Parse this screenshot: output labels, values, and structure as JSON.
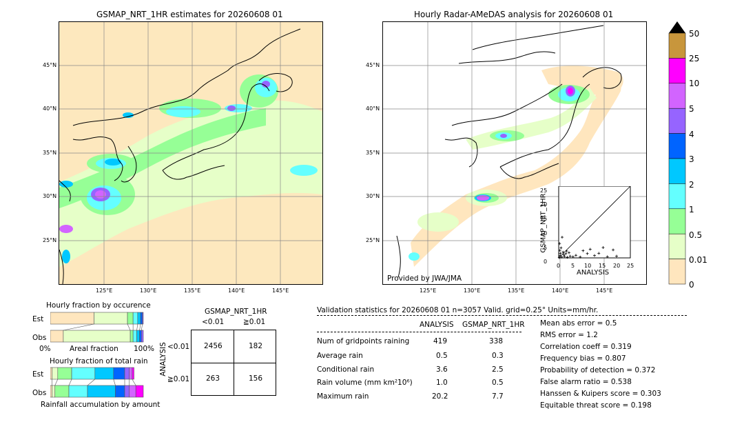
{
  "left_map": {
    "title": "GSMAP_NRT_1HR estimates for 20260608 01",
    "lat_labels": [
      "45°N",
      "40°N",
      "35°N",
      "30°N",
      "25°N"
    ],
    "lon_labels": [
      "125°E",
      "130°E",
      "135°E",
      "140°E",
      "145°E"
    ]
  },
  "right_map": {
    "title": "Hourly Radar-AMeDAS analysis for 20260608 01",
    "lat_labels": [
      "45°N",
      "40°N",
      "35°N",
      "30°N",
      "25°N"
    ],
    "lon_labels": [
      "125°E",
      "130°E",
      "135°E",
      "140°E",
      "145°E"
    ],
    "credit": "Provided by JWA/JMA"
  },
  "scatter_inset": {
    "xlabel": "ANALYSIS",
    "ylabel": "GSMAP_NRT_1HR",
    "ticks": [
      "0",
      "5",
      "10",
      "15",
      "20",
      "25"
    ]
  },
  "colorbar": {
    "labels": [
      "50",
      "25",
      "10",
      "5",
      "4",
      "3",
      "2",
      "1",
      "0.5",
      "0.01",
      "0"
    ],
    "colors": [
      "#c8963c",
      "#ff00ff",
      "#d264ff",
      "#9664ff",
      "#0064ff",
      "#00c8ff",
      "#64ffff",
      "#96ff96",
      "#e6ffc8",
      "#ffe6be"
    ]
  },
  "occurrence": {
    "title": "Hourly fraction by occurence",
    "row_est": "Est",
    "row_obs": "Obs",
    "axis_left": "0%",
    "axis_mid": "Areal fraction",
    "axis_right": "100%"
  },
  "total_rain": {
    "title": "Hourly fraction of total rain",
    "row_est": "Est",
    "row_obs": "Obs",
    "axis_label": "Rainfall accumulation by amount"
  },
  "contingency": {
    "title": "GSMAP_NRT_1HR",
    "col_lt": "<0.01",
    "col_ge": "≧0.01",
    "row_axis": "ANALYSIS",
    "row_lt": "<0.01",
    "row_ge": "≧0.01",
    "cells": [
      "2456",
      "182",
      "263",
      "156"
    ]
  },
  "validation": {
    "header": "Validation statistics for 20260608 01  n=3057 Valid. grid=0.25° Units=mm/hr.",
    "col_analysis": "ANALYSIS",
    "col_gsmap": "GSMAP_NRT_1HR",
    "rows": [
      {
        "label": "Num of gridpoints raining",
        "analysis": "419",
        "gsmap": "338"
      },
      {
        "label": "Average rain",
        "analysis": "0.5",
        "gsmap": "0.3"
      },
      {
        "label": "Conditional rain",
        "analysis": "3.6",
        "gsmap": "2.5"
      },
      {
        "label": "Rain volume (mm km²10⁶)",
        "analysis": "1.0",
        "gsmap": "0.5"
      },
      {
        "label": "Maximum rain",
        "analysis": "20.2",
        "gsmap": "7.7"
      }
    ],
    "scores": [
      "Mean abs error =    0.5",
      "RMS error =    1.2",
      "Correlation coeff =  0.319",
      "Frequency bias =  0.807",
      "Probability of detection =  0.372",
      "False alarm ratio =  0.538",
      "Hanssen & Kuipers score =  0.303",
      "Equitable threat score =  0.198"
    ]
  },
  "chart_data": [
    {
      "type": "scatter",
      "title": "",
      "xlabel": "ANALYSIS",
      "ylabel": "GSMAP_NRT_1HR",
      "xlim": [
        0,
        25
      ],
      "ylim": [
        0,
        25
      ],
      "points": [
        [
          0.2,
          0.1
        ],
        [
          0.5,
          0.8
        ],
        [
          1.0,
          0.3
        ],
        [
          1.5,
          2.0
        ],
        [
          2.0,
          0.5
        ],
        [
          0.8,
          3.5
        ],
        [
          0.3,
          5.0
        ],
        [
          1.2,
          7.2
        ],
        [
          2.5,
          1.5
        ],
        [
          3.0,
          0.2
        ],
        [
          4.0,
          0.6
        ],
        [
          5.0,
          0.4
        ],
        [
          6.0,
          0.9
        ],
        [
          7.5,
          0.3
        ],
        [
          8.5,
          2.5
        ],
        [
          10.0,
          1.5
        ],
        [
          11.0,
          3.0
        ],
        [
          12.5,
          0.8
        ],
        [
          14.0,
          1.6
        ],
        [
          15.5,
          3.6
        ],
        [
          17.0,
          0.4
        ],
        [
          19.0,
          2.8
        ],
        [
          20.2,
          0.6
        ],
        [
          0.6,
          1.6
        ],
        [
          1.8,
          1.1
        ],
        [
          2.8,
          2.4
        ],
        [
          3.6,
          1.8
        ],
        [
          0.4,
          2.6
        ]
      ]
    },
    {
      "type": "bar",
      "title": "Hourly fraction by occurence",
      "categories": [
        "Est",
        "Obs"
      ],
      "xlabel": "Areal fraction",
      "series": [
        {
          "values": [
            0.47,
            0.14
          ]
        },
        {
          "values": [
            0.36,
            0.72
          ]
        },
        {
          "values": [
            0.06,
            0.03
          ]
        },
        {
          "values": [
            0.05,
            0.04
          ]
        },
        {
          "values": [
            0.03,
            0.03
          ]
        },
        {
          "values": [
            0.02,
            0.02
          ]
        },
        {
          "values": [
            0.01,
            0.02
          ]
        }
      ]
    },
    {
      "type": "bar",
      "title": "Hourly fraction of total rain",
      "categories": [
        "Est",
        "Obs"
      ],
      "xlabel": "Rainfall accumulation by amount",
      "series": [
        {
          "values": [
            0.02,
            0.02
          ]
        },
        {
          "values": [
            0.06,
            0.03
          ]
        },
        {
          "values": [
            0.15,
            0.15
          ]
        },
        {
          "values": [
            0.25,
            0.2
          ]
        },
        {
          "values": [
            0.2,
            0.3
          ]
        },
        {
          "values": [
            0.12,
            0.1
          ]
        },
        {
          "values": [
            0.05,
            0.05
          ]
        },
        {
          "values": [
            0.03,
            0.07
          ]
        },
        {
          "values": [
            0.02,
            0.08
          ]
        }
      ]
    }
  ]
}
